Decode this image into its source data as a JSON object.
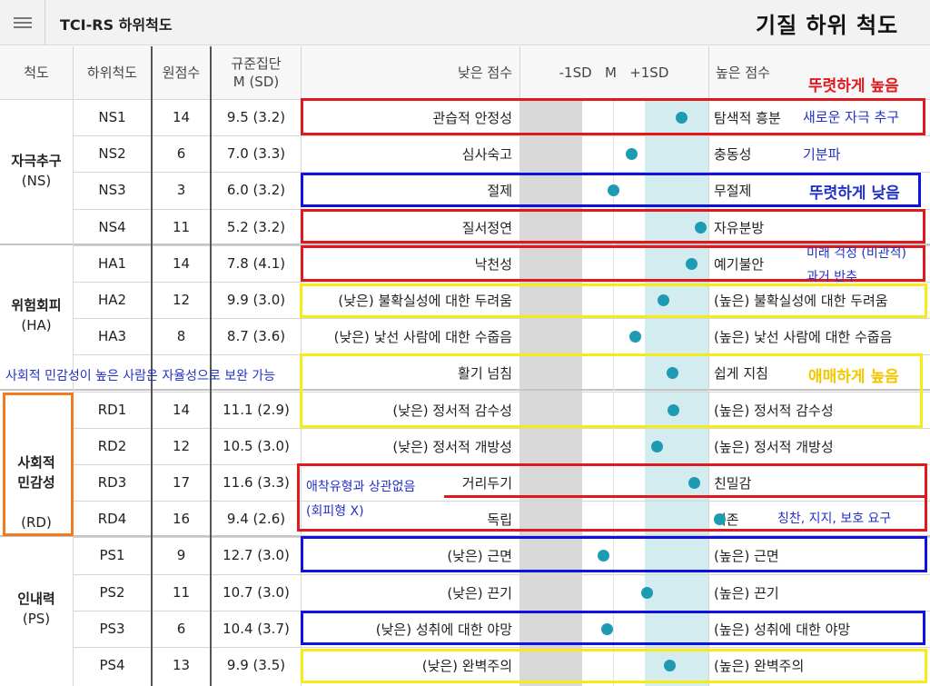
{
  "app": {
    "title": "TCI-RS 하위척도",
    "menu_icon": "hamburger-icon"
  },
  "overlay_title": "기질 하위 척도",
  "table": {
    "headers": {
      "scale": "척도",
      "subscale": "하위척도",
      "raw": "원점수",
      "norm_line1": "규준집단",
      "norm_line2": "M (SD)",
      "low": "낮은 점수",
      "chart": "-1SD   M   +1SD",
      "high": "높은 점수"
    },
    "groups": [
      {
        "name": "자극추구",
        "code": "(NS)"
      },
      {
        "name": "위험회피",
        "code": "(HA)"
      },
      {
        "name": "사회적\n민감성",
        "code": "(RD)"
      },
      {
        "name": "인내력",
        "code": "(PS)"
      }
    ],
    "rows": [
      {
        "code": "NS1",
        "raw": "14",
        "norm": "9.5 (3.2)",
        "low": "관습적 안정성",
        "high": "탐색적 흥분",
        "pos": 1.1
      },
      {
        "code": "NS2",
        "raw": "6",
        "norm": "7.0 (3.3)",
        "low": "심사숙고",
        "high": "충동성",
        "pos": 0.3
      },
      {
        "code": "NS3",
        "raw": "3",
        "norm": "6.0 (3.2)",
        "low": "절제",
        "high": "무절제",
        "pos": 0.0
      },
      {
        "code": "NS4",
        "raw": "11",
        "norm": "5.2 (3.2)",
        "low": "질서정연",
        "high": "자유분방",
        "pos": 1.4
      },
      {
        "code": "HA1",
        "raw": "14",
        "norm": "7.8 (4.1)",
        "low": "낙천성",
        "high": "예기불안",
        "pos": 1.25
      },
      {
        "code": "HA2",
        "raw": "12",
        "norm": "9.9 (3.0)",
        "low": "(낮은) 불확실성에 대한 두려움",
        "high": "(높은) 불확실성에 대한 두려움",
        "pos": 0.8
      },
      {
        "code": "HA3",
        "raw": "8",
        "norm": "8.7 (3.6)",
        "low": "(낮은) 낯선 사람에 대한 수줍음",
        "high": "(높은) 낯선 사람에 대한 수줍음",
        "pos": 0.35
      },
      {
        "code": "",
        "raw": "",
        "norm": "",
        "low": "활기 넘침",
        "high": "쉽게 지침",
        "pos": 0.95
      },
      {
        "code": "RD1",
        "raw": "14",
        "norm": "11.1 (2.9)",
        "low": "(낮은) 정서적 감수성",
        "high": "(높은) 정서적 감수성",
        "pos": 0.97
      },
      {
        "code": "RD2",
        "raw": "12",
        "norm": "10.5 (3.0)",
        "low": "(낮은) 정서적 개방성",
        "high": "(높은) 정서적 개방성",
        "pos": 0.7
      },
      {
        "code": "RD3",
        "raw": "17",
        "norm": "11.6 (3.3)",
        "low": "거리두기",
        "high": "친밀감",
        "pos": 1.3
      },
      {
        "code": "RD4",
        "raw": "16",
        "norm": "9.4 (2.6)",
        "low": "독립",
        "high": "의존",
        "pos": 1.7
      },
      {
        "code": "PS1",
        "raw": "9",
        "norm": "12.7 (3.0)",
        "low": "(낮은) 근면",
        "high": "(높은) 근면",
        "pos": -0.15
      },
      {
        "code": "PS2",
        "raw": "11",
        "norm": "10.7 (3.0)",
        "low": "(낮은) 끈기",
        "high": "(높은) 끈기",
        "pos": 0.55
      },
      {
        "code": "PS3",
        "raw": "6",
        "norm": "10.4 (3.7)",
        "low": "(낮은) 성취에 대한 야망",
        "high": "(높은) 성취에 대한 야망",
        "pos": -0.1
      },
      {
        "code": "PS4",
        "raw": "13",
        "norm": "9.9 (3.5)",
        "low": "(낮은) 완벽주의",
        "high": "(높은) 완벽주의",
        "pos": 0.9
      }
    ]
  },
  "annotations": {
    "distinct_high": "뚜렷하게 높음",
    "novelty": "새로운 자극 추구",
    "mood": "기분파",
    "distinct_low": "뚜렷하게 낮음",
    "worry_1": "미래 걱정 (비관적)",
    "worry_2": "과거 반추",
    "social_note": "사회적 민감성이 높은 사람은 자율성으로 보완 가능",
    "vague_high": "애매하게 높음",
    "attach_1": "애착유형과 상관없음",
    "attach_2": "(회피형 X)",
    "praise": "칭찬, 지지, 보호 요구"
  },
  "colors": {
    "dot": "#1d9bb2",
    "red_box": "#e0191e",
    "blue_box": "#1010e0",
    "yellow_box": "#f6ea17",
    "orange_box": "#f47a20",
    "note_text": "#2332c6"
  }
}
